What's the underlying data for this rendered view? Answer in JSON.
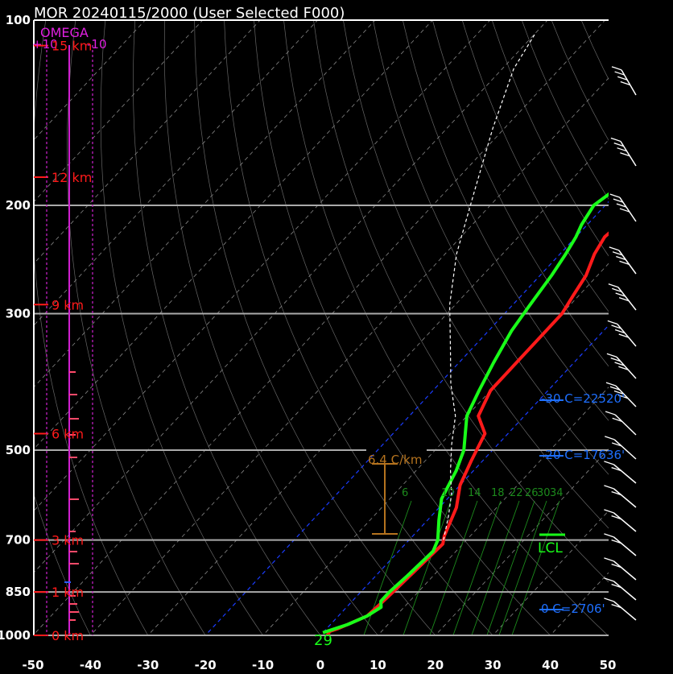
{
  "title": "MOR   20240115/2000  (User Selected F000)",
  "chart_data": {
    "type": "line",
    "title": "MOR   20240115/2000  (User Selected F000)",
    "xlabel": "",
    "ylabel": "",
    "x_ticks": [
      "-50",
      "-40",
      "-30",
      "-20",
      "-10",
      "0",
      "10",
      "20",
      "30",
      "40",
      "50"
    ],
    "xlim": [
      -50,
      50
    ],
    "p_ticks": [
      {
        "p": 100,
        "label": "100"
      },
      {
        "p": 200,
        "label": "200"
      },
      {
        "p": 300,
        "label": "300"
      },
      {
        "p": 500,
        "label": "500"
      },
      {
        "p": 700,
        "label": "700"
      },
      {
        "p": 850,
        "label": "850"
      },
      {
        "p": 1000,
        "label": "1000"
      }
    ],
    "ylim_hpa": [
      1000,
      100
    ],
    "height_marks": [
      {
        "p": 1000,
        "label": "0 km"
      },
      {
        "p": 850,
        "label": "1 km"
      },
      {
        "p": 700,
        "label": "3 km"
      },
      {
        "p": 470,
        "label": "6 km"
      },
      {
        "p": 290,
        "label": "9 km"
      },
      {
        "p": 180,
        "label": "12 km"
      },
      {
        "p": 110,
        "label": "15 km"
      }
    ],
    "omega_label": "OMEGA",
    "omega_ticks": [
      "+10",
      "-10"
    ],
    "series": [
      {
        "name": "Temperature",
        "color": "#ff1a1a",
        "points": [
          [
            1.2,
            1000
          ],
          [
            1,
            985
          ],
          [
            2,
            975
          ],
          [
            5,
            930
          ],
          [
            5.5,
            870
          ],
          [
            6,
            790
          ],
          [
            6.5,
            710
          ],
          [
            5.5,
            690
          ],
          [
            3,
            620
          ],
          [
            0,
            570
          ],
          [
            -2,
            520
          ],
          [
            -4,
            470
          ],
          [
            -8,
            440
          ],
          [
            -10,
            400
          ],
          [
            -10,
            330
          ],
          [
            -10,
            300
          ],
          [
            -11,
            280
          ],
          [
            -12,
            260
          ],
          [
            -14,
            240
          ],
          [
            -15,
            225
          ],
          [
            -14,
            205
          ],
          [
            -12,
            195
          ],
          [
            -10,
            185
          ],
          [
            -8,
            175
          ],
          [
            -6,
            168
          ],
          [
            -4,
            162
          ],
          [
            -3,
            150
          ],
          [
            -2,
            130
          ],
          [
            -1,
            110
          ],
          [
            0,
            100
          ]
        ]
      },
      {
        "name": "Dewpoint",
        "color": "#19ff19",
        "points": [
          [
            0,
            990
          ],
          [
            1,
            980
          ],
          [
            3,
            960
          ],
          [
            5,
            930
          ],
          [
            6,
            900
          ],
          [
            5,
            880
          ],
          [
            5,
            850
          ],
          [
            5.5,
            800
          ],
          [
            6,
            730
          ],
          [
            5,
            700
          ],
          [
            2,
            650
          ],
          [
            -1,
            600
          ],
          [
            -3,
            540
          ],
          [
            -5,
            500
          ],
          [
            -10,
            440
          ],
          [
            -12,
            400
          ],
          [
            -14,
            360
          ],
          [
            -16,
            320
          ],
          [
            -17,
            290
          ],
          [
            -18,
            260
          ],
          [
            -19,
            240
          ],
          [
            -20,
            225
          ],
          [
            -21,
            215
          ],
          [
            -22,
            200
          ],
          [
            -21,
            190
          ],
          [
            -20,
            180
          ],
          [
            -22,
            170
          ],
          [
            -23,
            160
          ],
          [
            -21,
            150
          ]
        ]
      },
      {
        "name": "Parcel",
        "color": "#ffffff",
        "dash": "4,3",
        "points": [
          [
            6,
            700
          ],
          [
            3,
            640
          ],
          [
            0,
            590
          ],
          [
            -4,
            540
          ],
          [
            -8,
            490
          ],
          [
            -12,
            440
          ],
          [
            -18,
            390
          ],
          [
            -24,
            340
          ],
          [
            -31,
            290
          ],
          [
            -38,
            240
          ],
          [
            -45,
            190
          ],
          [
            -52,
            150
          ],
          [
            -58,
            120
          ],
          [
            -60,
            105
          ]
        ]
      }
    ],
    "isotherm_0C": -2,
    "isotherm_minus20C": -20,
    "annotations": [
      {
        "text": "-30 C=22520'",
        "color": "#1e6fff",
        "p": 420
      },
      {
        "text": "-20 C=17636'",
        "color": "#1e6fff",
        "p": 510
      },
      {
        "text": "0 C=2706'",
        "color": "#1e6fff",
        "p": 950
      },
      {
        "text": "LCL",
        "color": "#19ff19",
        "p": 700
      },
      {
        "text": "6.4 C/km",
        "color": "#b5731e",
        "p": 540
      },
      {
        "text": "29",
        "color": "#19ff19",
        "p": 1000
      }
    ],
    "mixing_ratio_labels": [
      "6",
      "10",
      "14",
      "18",
      "22",
      "26",
      "30",
      "34"
    ],
    "grid": true
  }
}
